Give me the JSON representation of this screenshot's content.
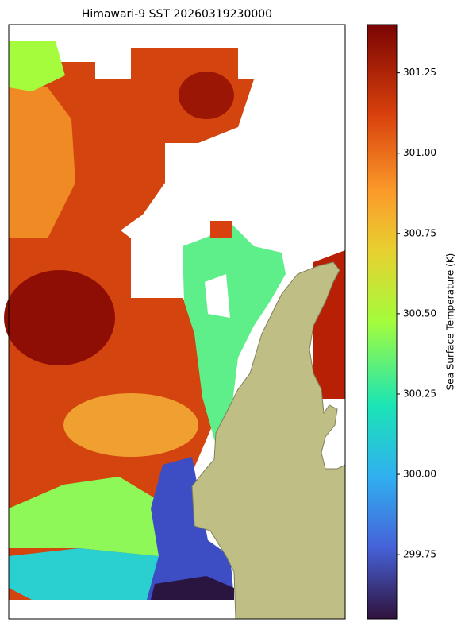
{
  "chart_data": {
    "type": "heatmap",
    "title": "Himawari-9 SST 20260319230000",
    "colorbar_label": "Sea Surface Temperature (K)",
    "clim": [
      299.55,
      301.4
    ],
    "cticks": [
      {
        "value": 299.75,
        "label": "299.75"
      },
      {
        "value": 300,
        "label": "300.00"
      },
      300.25,
      {
        "value": 300.5,
        "label": "300.50"
      },
      300.75,
      {
        "value": 301,
        "label": "301.00"
      },
      301.25
    ]
  }
}
